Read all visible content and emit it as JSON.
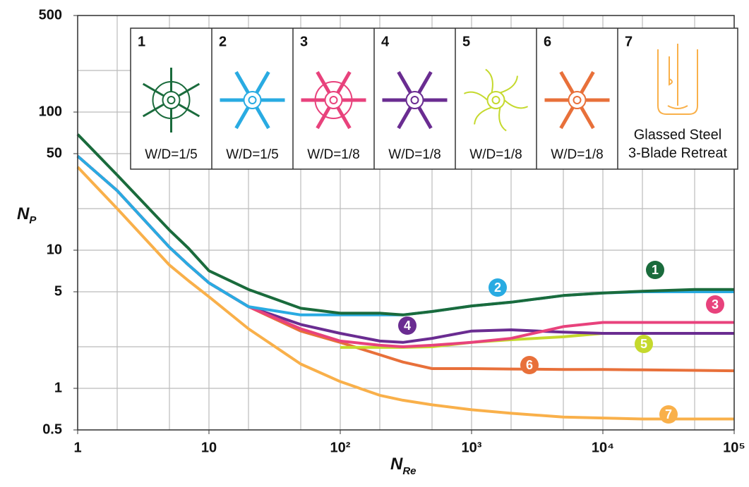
{
  "chart_data": {
    "type": "line",
    "ylabel": {
      "text": "N",
      "subscript": "P"
    },
    "xlabel": {
      "text": "N",
      "subscript": "Re"
    },
    "log_x": true,
    "log_y": true,
    "grid": true,
    "xlim": [
      1,
      100000
    ],
    "ylim": [
      0.5,
      500
    ],
    "xticks": [
      1,
      10,
      {
        "value": 100,
        "label": "10²"
      },
      {
        "value": 1000,
        "label": "10³"
      },
      {
        "value": 10000,
        "label": "10⁴"
      },
      {
        "value": 100000,
        "label": "10⁵"
      }
    ],
    "yticks": [
      0.5,
      1,
      5,
      10,
      50,
      100,
      500
    ],
    "xgrid": [
      1,
      2,
      5,
      10,
      20,
      50,
      100,
      200,
      500,
      1000,
      2000,
      5000,
      10000,
      20000,
      50000,
      100000
    ],
    "ygrid": [
      0.5,
      1,
      2,
      5,
      10,
      20,
      50,
      100,
      200,
      500
    ],
    "x": [
      1,
      2,
      5,
      7,
      10,
      20,
      50,
      100,
      200,
      300,
      500,
      1000,
      2000,
      5000,
      10000,
      20000,
      50000,
      100000
    ],
    "series": [
      {
        "name": "1",
        "label": "W/D=1/5",
        "color": "#1a6b3c",
        "values": [
          69,
          35,
          14,
          10.3,
          7.1,
          5.2,
          3.8,
          3.5,
          3.5,
          3.4,
          3.6,
          3.95,
          4.2,
          4.7,
          4.9,
          5.05,
          5.2,
          5.2
        ]
      },
      {
        "name": "2",
        "label": "W/D=1/5",
        "color": "#29abe2",
        "values": [
          48,
          27,
          10.5,
          7.8,
          5.8,
          3.9,
          3.4,
          3.4,
          3.4,
          3.4,
          3.6,
          3.95,
          4.2,
          4.7,
          4.9,
          5,
          5,
          5
        ]
      },
      {
        "name": "3",
        "label": "W/D=1/8",
        "color": "#e8427c",
        "values": [
          48,
          27,
          10.5,
          7.8,
          5.8,
          3.9,
          2.7,
          2.2,
          2.05,
          2,
          2.05,
          2.15,
          2.3,
          2.8,
          3,
          3,
          3,
          3
        ]
      },
      {
        "name": "4",
        "label": "W/D=1/8",
        "color": "#6a2c91",
        "values": [
          48,
          27,
          10.5,
          7.8,
          5.8,
          3.9,
          2.9,
          2.5,
          2.2,
          2.15,
          2.3,
          2.6,
          2.65,
          2.55,
          2.5,
          2.5,
          2.5,
          2.5
        ]
      },
      {
        "name": "5",
        "label": "W/D=1/8",
        "color": "#c5d92d",
        "values": [
          null,
          null,
          null,
          null,
          null,
          null,
          null,
          1.98,
          1.98,
          1.98,
          2,
          2.15,
          2.25,
          2.36,
          2.5,
          2.5,
          2.5,
          2.5
        ]
      },
      {
        "name": "6",
        "label": "W/D=1/8",
        "color": "#e8703a",
        "values": [
          48,
          27,
          10.5,
          7.8,
          5.8,
          3.9,
          2.6,
          2.15,
          1.75,
          1.55,
          1.39,
          1.39,
          1.38,
          1.37,
          1.37,
          1.36,
          1.35,
          1.34
        ]
      },
      {
        "name": "7",
        "label": [
          "Glassed Steel",
          "3-Blade Retreat"
        ],
        "color": "#f9b04a",
        "values": [
          40,
          20,
          7.8,
          6,
          4.6,
          2.7,
          1.5,
          1.12,
          0.89,
          0.82,
          0.76,
          0.7,
          0.66,
          0.62,
          0.61,
          0.6,
          0.6,
          0.6
        ]
      }
    ]
  }
}
